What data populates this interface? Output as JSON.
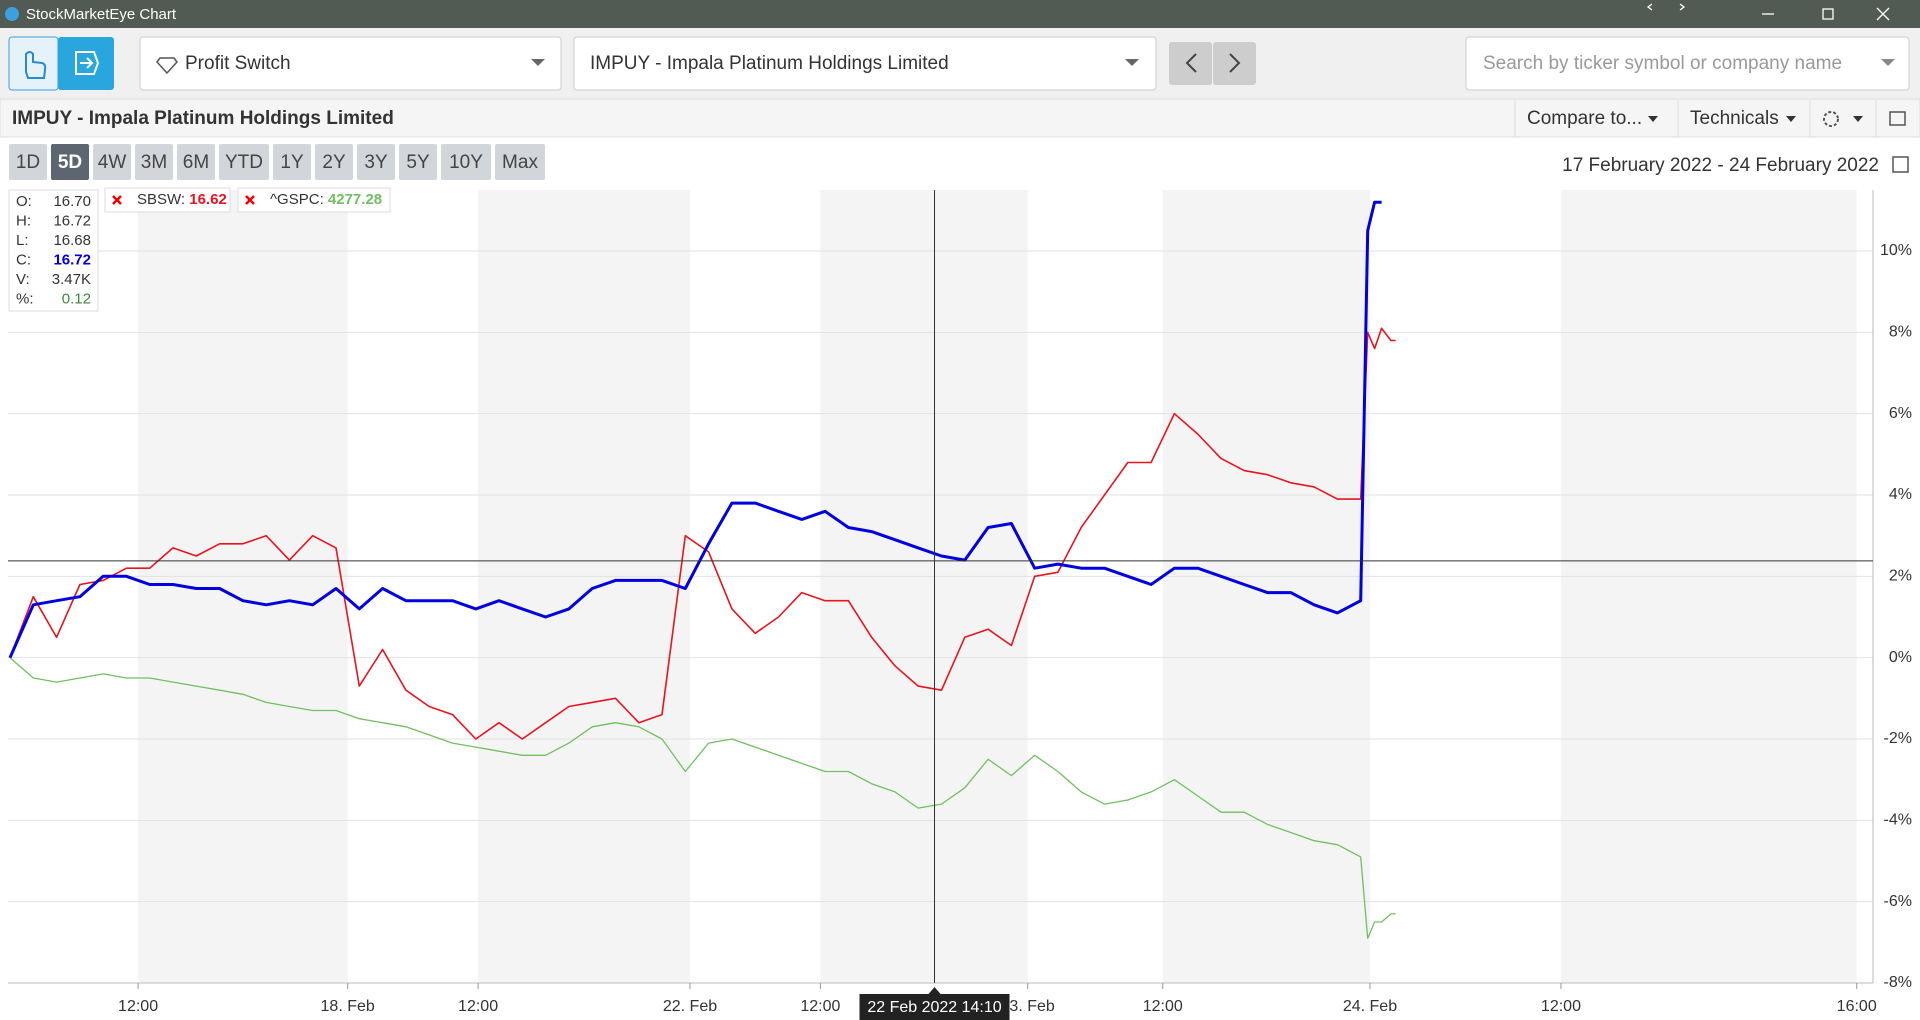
{
  "window": {
    "title": "StockMarketEye Chart"
  },
  "toolbar": {
    "portfolio": "Profit Switch",
    "symbol": "IMPUY - Impala Platinum Holdings Limited",
    "search_placeholder": "Search by ticker symbol or company name"
  },
  "header": {
    "title": "IMPUY - Impala Platinum Holdings Limited",
    "compare": "Compare to...",
    "technicals": "Technicals"
  },
  "ranges": {
    "items": [
      "1D",
      "5D",
      "4W",
      "3M",
      "6M",
      "YTD",
      "1Y",
      "2Y",
      "3Y",
      "5Y",
      "10Y",
      "Max"
    ],
    "selected": "5D"
  },
  "date_range": "17 February 2022 - 24 February 2022",
  "ohlc": [
    {
      "label": "O:",
      "value": "16.70"
    },
    {
      "label": "H:",
      "value": "16.72"
    },
    {
      "label": "L:",
      "value": "16.68"
    },
    {
      "label": "C:",
      "value": "16.72",
      "color": "#0000e0"
    },
    {
      "label": "V:",
      "value": "3.47K"
    },
    {
      "label": "%:",
      "value": "0.12",
      "color": "#3a8a3a"
    }
  ],
  "chart_data": {
    "type": "line",
    "x": [
      0,
      1,
      2,
      3,
      4,
      5,
      6,
      7,
      8,
      9,
      10,
      11,
      12,
      13,
      14,
      15,
      16,
      17,
      18,
      19,
      20,
      21,
      22,
      23,
      24,
      25,
      26,
      27,
      28,
      29,
      30,
      31,
      32,
      33,
      34,
      35,
      36,
      37,
      38,
      39,
      40,
      41,
      42,
      43,
      44,
      45,
      46,
      47,
      48,
      49,
      50,
      51,
      52,
      53,
      54,
      55,
      56,
      57,
      58,
      58.3,
      58.6,
      58.9,
      59.3,
      59.5
    ],
    "series": [
      {
        "name": "IMPUY",
        "color": "#0000e0",
        "values": [
          0,
          1.3,
          1.4,
          1.5,
          2.0,
          2.0,
          1.8,
          1.8,
          1.7,
          1.7,
          1.4,
          1.3,
          1.4,
          1.3,
          1.7,
          1.2,
          1.7,
          1.4,
          1.4,
          1.4,
          1.2,
          1.4,
          1.2,
          1.0,
          1.2,
          1.7,
          1.9,
          1.9,
          1.9,
          1.7,
          2.8,
          3.8,
          3.8,
          3.6,
          3.4,
          3.6,
          3.2,
          3.1,
          2.9,
          2.7,
          2.5,
          2.4,
          3.2,
          3.3,
          2.2,
          2.3,
          2.2,
          2.2,
          2.0,
          1.8,
          2.2,
          2.2,
          2.0,
          1.8,
          1.6,
          1.6,
          1.3,
          1.1,
          1.4,
          10.5,
          11.2,
          11.2,
          null,
          null
        ]
      },
      {
        "name": "SBSW",
        "color": "#e8141e",
        "label_value": "16.62",
        "values": [
          0,
          1.5,
          0.5,
          1.8,
          1.9,
          2.2,
          2.2,
          2.7,
          2.5,
          2.8,
          2.8,
          3.0,
          2.4,
          3.0,
          2.7,
          -0.7,
          0.2,
          -0.8,
          -1.2,
          -1.4,
          -2.0,
          -1.6,
          -2.0,
          -1.6,
          -1.2,
          -1.1,
          -1.0,
          -1.6,
          -1.4,
          3.0,
          2.6,
          1.2,
          0.6,
          1.0,
          1.6,
          1.4,
          1.4,
          0.5,
          -0.2,
          -0.7,
          -0.8,
          0.5,
          0.7,
          0.3,
          2.0,
          2.1,
          3.2,
          4.0,
          4.8,
          4.8,
          6.0,
          5.5,
          4.9,
          4.6,
          4.5,
          4.3,
          4.2,
          3.9,
          3.9,
          8.0,
          7.6,
          8.1,
          7.8,
          7.8
        ]
      },
      {
        "name": "^GSPC",
        "color": "#70c060",
        "label_value": "4277.28",
        "values": [
          0,
          -0.5,
          -0.6,
          -0.5,
          -0.4,
          -0.5,
          -0.5,
          -0.6,
          -0.7,
          -0.8,
          -0.9,
          -1.1,
          -1.2,
          -1.3,
          -1.3,
          -1.5,
          -1.6,
          -1.7,
          -1.9,
          -2.1,
          -2.2,
          -2.3,
          -2.4,
          -2.4,
          -2.1,
          -1.7,
          -1.6,
          -1.7,
          -2.0,
          -2.8,
          -2.1,
          -2.0,
          -2.2,
          -2.4,
          -2.6,
          -2.8,
          -2.8,
          -3.1,
          -3.3,
          -3.7,
          -3.6,
          -3.2,
          -2.5,
          -2.9,
          -2.4,
          -2.8,
          -3.3,
          -3.6,
          -3.5,
          -3.3,
          -3.0,
          -3.4,
          -3.8,
          -3.8,
          -4.1,
          -4.3,
          -4.5,
          -4.6,
          -4.9,
          -6.9,
          -6.5,
          -6.5,
          -6.3,
          -6.3
        ]
      }
    ],
    "xlim": [
      0,
      80
    ],
    "xticks": [
      {
        "value": 5.5,
        "label": "12:00"
      },
      {
        "value": 14.5,
        "label": "18. Feb"
      },
      {
        "value": 20.1,
        "label": "12:00"
      },
      {
        "value": 29.2,
        "label": "22. Feb"
      },
      {
        "value": 34.8,
        "label": "12:00"
      },
      {
        "value": 43.7,
        "label": "23. Feb"
      },
      {
        "value": 49.5,
        "label": "12:00"
      },
      {
        "value": 58.4,
        "label": "24. Feb"
      },
      {
        "value": 66.6,
        "label": "12:00"
      },
      {
        "value": 79.3,
        "label": "16:00"
      }
    ],
    "ylim": [
      -8,
      11.5
    ],
    "yticks": [
      {
        "value": -8,
        "label": "-8%"
      },
      {
        "value": -6,
        "label": "-6%"
      },
      {
        "value": -4,
        "label": "-4%"
      },
      {
        "value": -2,
        "label": "-2%"
      },
      {
        "value": 0,
        "label": "0%"
      },
      {
        "value": 2,
        "label": "2%"
      },
      {
        "value": 4,
        "label": "4%"
      },
      {
        "value": 6,
        "label": "6%"
      },
      {
        "value": 8,
        "label": "8%"
      },
      {
        "value": 10,
        "label": "10%"
      }
    ],
    "grid": true,
    "crosshair": {
      "x": 39.7,
      "y": 2.38,
      "label": "22 Feb 2022 14:10"
    }
  }
}
